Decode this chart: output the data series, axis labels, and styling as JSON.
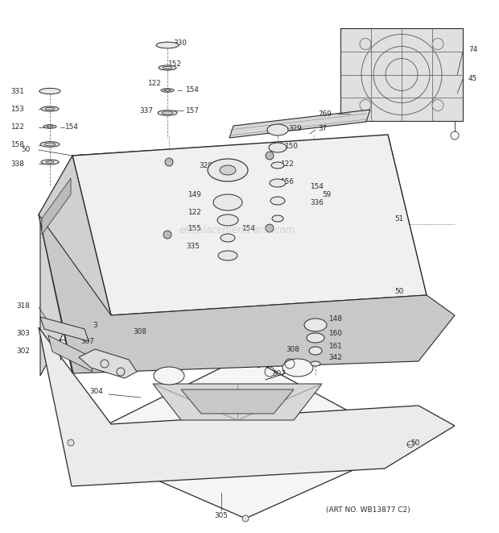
{
  "bg_color": "#ffffff",
  "line_color": "#2a2a2a",
  "art_no": "(ART NO. WB13877 C2)",
  "watermark": "eReplacementParts.com"
}
